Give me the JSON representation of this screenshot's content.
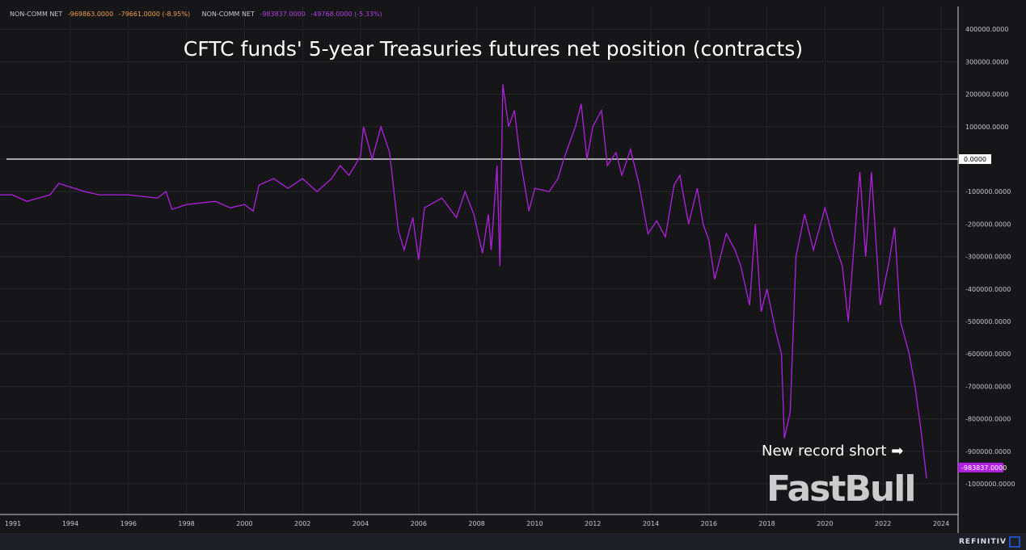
{
  "legend": [
    {
      "label": "NON-COMM NET",
      "value": "-969863.0000",
      "change": "-79661.0000 (-8.95%)",
      "color": "#f0a050"
    },
    {
      "label": "NON-COMM NET",
      "value": "-983837.0000",
      "change": "-49768.0000 (-5.33%)",
      "color": "#b040e0"
    }
  ],
  "annotation": "New record short",
  "watermark": "FastBull",
  "footer": "REFINITIV",
  "chart_data": {
    "type": "line",
    "title": "CFTC funds' 5-year Treasuries futures net position (contracts)",
    "x_ticks": [
      "1991",
      "1994",
      "1996",
      "1998",
      "2000",
      "2002",
      "2004",
      "2006",
      "2008",
      "2010",
      "2012",
      "2014",
      "2016",
      "2018",
      "2020",
      "2022",
      "2024"
    ],
    "y_ticks": [
      "400000.0000",
      "300000.0000",
      "200000.0000",
      "100000.0000",
      "0.0000",
      "-100000.0000",
      "-200000.0000",
      "-300000.0000",
      "-400000.0000",
      "-500000.0000",
      "-600000.0000",
      "-700000.0000",
      "-800000.0000",
      "-900000.0000",
      "-1000000.0000"
    ],
    "y_axis_side": "right",
    "grid": true,
    "last_value_label": "-983837.0000",
    "series_color": "#b020e0",
    "zero_line_color": "#ffffff",
    "series": [
      {
        "x": [
          1990.8,
          1992,
          1992.5,
          1993.3,
          1993.6,
          1994.5,
          1995,
          1996,
          1997,
          1997.3,
          1997.5,
          1998,
          1999,
          1999.5,
          2000,
          2000.3,
          2000.5,
          2001,
          2001.5,
          2002,
          2002.5,
          2003,
          2003.3,
          2003.6,
          2004,
          2004.1,
          2004.4,
          2004.7,
          2005,
          2005.3,
          2005.5,
          2005.8,
          2006,
          2006.2,
          2006.8,
          2007.3,
          2007.6,
          2007.9,
          2008.2,
          2008.4,
          2008.5,
          2008.7,
          2008.8,
          2008.9,
          2009.1,
          2009.3,
          2009.5,
          2009.8,
          2010,
          2010.5,
          2010.8,
          2011,
          2011.4,
          2011.6,
          2011.8,
          2012,
          2012.3,
          2012.5,
          2012.8,
          2013,
          2013.3,
          2013.6,
          2013.9,
          2014.2,
          2014.5,
          2014.8,
          2015,
          2015.3,
          2015.6,
          2015.8,
          2016,
          2016.2,
          2016.6,
          2016.9,
          2017.1,
          2017.4,
          2017.6,
          2017.8,
          2018,
          2018.3,
          2018.5,
          2018.6,
          2018.8,
          2019,
          2019.3,
          2019.6,
          2020,
          2020.3,
          2020.6,
          2020.8,
          2021.1,
          2021.2,
          2021.4,
          2021.6,
          2021.9,
          2022.2,
          2022.4,
          2022.6,
          2022.9,
          2023.1,
          2023.3,
          2023.5
        ],
        "y": [
          -110000,
          -110000,
          -130000,
          -110000,
          -75000,
          -100000,
          -110000,
          -110000,
          -120000,
          -100000,
          -155000,
          -140000,
          -130000,
          -150000,
          -140000,
          -160000,
          -80000,
          -60000,
          -90000,
          -60000,
          -100000,
          -60000,
          -20000,
          -50000,
          10000,
          100000,
          0,
          100000,
          20000,
          -220000,
          -280000,
          -180000,
          -310000,
          -150000,
          -120000,
          -180000,
          -100000,
          -170000,
          -290000,
          -170000,
          -280000,
          -20000,
          -330000,
          230000,
          100000,
          150000,
          0,
          -160000,
          -90000,
          -100000,
          -60000,
          0,
          100000,
          170000,
          0,
          100000,
          150000,
          -20000,
          20000,
          -50000,
          30000,
          -80000,
          -230000,
          -190000,
          -240000,
          -80000,
          -50000,
          -200000,
          -90000,
          -200000,
          -250000,
          -370000,
          -230000,
          -280000,
          -330000,
          -450000,
          -200000,
          -470000,
          -400000,
          -530000,
          -600000,
          -860000,
          -780000,
          -300000,
          -170000,
          -280000,
          -150000,
          -250000,
          -330000,
          -500000,
          -150000,
          -40000,
          -300000,
          -40000,
          -450000,
          -320000,
          -210000,
          -500000,
          -600000,
          -700000,
          -830000,
          -983837
        ]
      }
    ]
  }
}
